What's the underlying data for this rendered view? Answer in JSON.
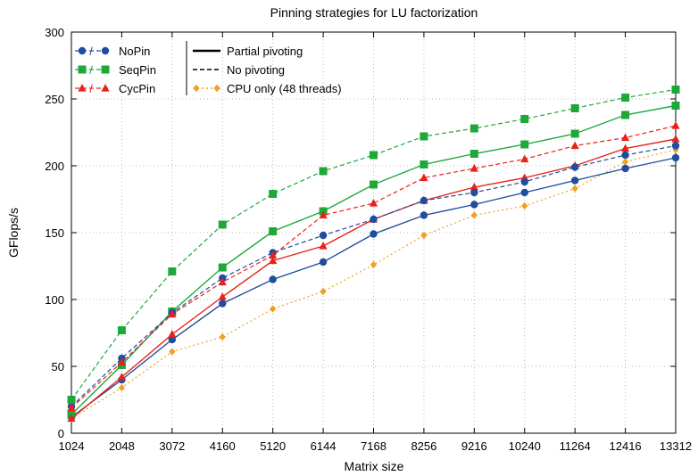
{
  "chart_data": {
    "type": "line",
    "title": "Pinning strategies for LU factorization",
    "xlabel": "Matrix size",
    "ylabel": "GFlops/s",
    "categories": [
      "1024",
      "2048",
      "3072",
      "4160",
      "5120",
      "6144",
      "7168",
      "8256",
      "9216",
      "10240",
      "11264",
      "12416",
      "13312"
    ],
    "ylim": [
      0,
      300
    ],
    "yticks": [
      0,
      50,
      100,
      150,
      200,
      250,
      300
    ],
    "grid": true,
    "legend": {
      "placement": "top-left",
      "strategies": [
        {
          "name": "NoPin",
          "color": "#1f4e9c",
          "marker": "circle"
        },
        {
          "name": "SeqPin",
          "color": "#1fa83a",
          "marker": "square"
        },
        {
          "name": "CycPin",
          "color": "#e8221a",
          "marker": "triangle"
        }
      ],
      "styles": [
        {
          "name": "Partial pivoting",
          "dash": "solid"
        },
        {
          "name": "No pivoting",
          "dash": "dashed"
        },
        {
          "name": "CPU only (48 threads)",
          "dash": "dotted",
          "color": "#f0a022",
          "marker": "diamond"
        }
      ]
    },
    "series": [
      {
        "strategy": "NoPin",
        "style": "Partial pivoting",
        "color": "#1f4e9c",
        "marker": "circle",
        "dash": "solid",
        "values": [
          12,
          40,
          70,
          97,
          115,
          128,
          149,
          163,
          171,
          180,
          189,
          198,
          206
        ]
      },
      {
        "strategy": "NoPin",
        "style": "No pivoting",
        "color": "#1f4e9c",
        "marker": "circle",
        "dash": "dashed",
        "values": [
          20,
          56,
          90,
          116,
          135,
          148,
          160,
          174,
          180,
          188,
          199,
          208,
          215
        ]
      },
      {
        "strategy": "SeqPin",
        "style": "Partial pivoting",
        "color": "#1fa83a",
        "marker": "square",
        "dash": "solid",
        "values": [
          14,
          51,
          91,
          124,
          151,
          166,
          186,
          201,
          209,
          216,
          224,
          238,
          245
        ]
      },
      {
        "strategy": "SeqPin",
        "style": "No pivoting",
        "color": "#1fa83a",
        "marker": "square",
        "dash": "dashed",
        "values": [
          25,
          77,
          121,
          156,
          179,
          196,
          208,
          222,
          228,
          235,
          243,
          251,
          257
        ]
      },
      {
        "strategy": "CycPin",
        "style": "Partial pivoting",
        "color": "#e8221a",
        "marker": "triangle",
        "dash": "solid",
        "values": [
          11,
          42,
          74,
          102,
          129,
          140,
          160,
          174,
          184,
          191,
          200,
          213,
          220
        ]
      },
      {
        "strategy": "CycPin",
        "style": "No pivoting",
        "color": "#e8221a",
        "marker": "triangle",
        "dash": "dashed",
        "values": [
          19,
          53,
          89,
          113,
          133,
          163,
          172,
          191,
          198,
          205,
          215,
          221,
          230
        ]
      },
      {
        "strategy": "CPU only",
        "style": "CPU only (48 threads)",
        "color": "#f0a022",
        "marker": "diamond",
        "dash": "dotted",
        "values": [
          11,
          34,
          61,
          72,
          93,
          106,
          126,
          148,
          163,
          170,
          183,
          203,
          212
        ]
      }
    ]
  }
}
